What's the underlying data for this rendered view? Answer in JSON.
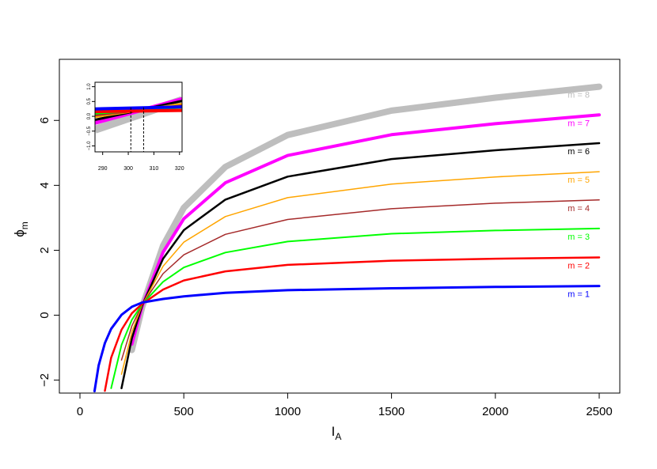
{
  "chart_data": [
    {
      "type": "line",
      "title": "",
      "xlabel": "I",
      "xlabel_sub": "A",
      "ylabel": "ϕ",
      "ylabel_sub": "m",
      "xlim": [
        0,
        2500
      ],
      "ylim": [
        -2.35,
        7.2
      ],
      "xticks": [
        0,
        500,
        1000,
        1500,
        2000,
        2500
      ],
      "yticks": [
        -2,
        0,
        2,
        4,
        6
      ],
      "grid": false,
      "legend": "none (labels at right end of each curve)",
      "x": [
        70,
        90,
        120,
        150,
        200,
        250,
        300,
        400,
        500,
        700,
        1000,
        1500,
        2000,
        2500
      ],
      "series": [
        {
          "name": "m = 1",
          "color": "#0000ff",
          "line_width": 3,
          "values": [
            -2.34,
            -1.55,
            -0.86,
            -0.42,
            0.01,
            0.26,
            0.39,
            0.5,
            0.58,
            0.69,
            0.77,
            0.83,
            0.87,
            0.9
          ]
        },
        {
          "name": "m = 2",
          "color": "#ff0000",
          "line_width": 2.5,
          "values": [
            null,
            null,
            -2.33,
            -1.31,
            -0.45,
            0.06,
            0.35,
            0.79,
            1.07,
            1.35,
            1.55,
            1.68,
            1.74,
            1.78
          ]
        },
        {
          "name": "m = 3",
          "color": "#00ff00",
          "line_width": 2,
          "values": [
            null,
            null,
            null,
            -2.25,
            -0.92,
            -0.14,
            0.34,
            1.03,
            1.47,
            1.93,
            2.27,
            2.51,
            2.61,
            2.67
          ]
        },
        {
          "name": "m = 4",
          "color": "#a52a2a",
          "line_width": 1.5,
          "values": [
            null,
            null,
            null,
            null,
            -1.38,
            -0.33,
            0.33,
            1.28,
            1.86,
            2.49,
            2.95,
            3.28,
            3.45,
            3.55
          ]
        },
        {
          "name": "m = 5",
          "color": "#ffa500",
          "line_width": 1.5,
          "values": [
            null,
            null,
            null,
            null,
            -1.82,
            -0.52,
            0.32,
            1.51,
            2.25,
            3.04,
            3.62,
            4.04,
            4.26,
            4.42
          ]
        },
        {
          "name": "m = 6",
          "color": "#000000",
          "line_width": 2.5,
          "values": [
            null,
            null,
            null,
            null,
            -2.25,
            -0.71,
            0.3,
            1.74,
            2.62,
            3.56,
            4.27,
            4.81,
            5.08,
            5.3
          ]
        },
        {
          "name": "m = 7",
          "color": "#ff00ff",
          "line_width": 4,
          "values": [
            null,
            null,
            null,
            null,
            null,
            -0.89,
            0.28,
            1.94,
            2.97,
            4.08,
            4.92,
            5.56,
            5.9,
            6.17
          ]
        },
        {
          "name": "m = 8",
          "color": "#bebebe",
          "line_width": 8,
          "values": [
            null,
            null,
            null,
            null,
            null,
            -1.07,
            0.26,
            2.14,
            3.31,
            4.57,
            5.55,
            6.3,
            6.7,
            7.04
          ]
        }
      ]
    },
    {
      "type": "line",
      "title": "",
      "xlim": [
        287,
        321
      ],
      "ylim": [
        -1.2,
        1.15
      ],
      "xticks": [
        290,
        300,
        310,
        320
      ],
      "yticks": [
        -1.0,
        -0.5,
        0.0,
        0.5,
        1.0
      ],
      "ytick_labels": [
        "−1.0",
        "−0.5",
        "0.0",
        "0.5",
        "1.0"
      ],
      "vlines": [
        301,
        306
      ],
      "grid": false,
      "inset": true,
      "x": [
        287,
        321
      ],
      "series": [
        {
          "color": "#bebebe",
          "line_width": 10,
          "values": [
            -0.45,
            0.55
          ]
        },
        {
          "color": "#ff00ff",
          "line_width": 5,
          "values": [
            -0.22,
            0.58
          ]
        },
        {
          "color": "#000000",
          "line_width": 3,
          "values": [
            -0.12,
            0.52
          ]
        },
        {
          "color": "#ffa500",
          "line_width": 3,
          "values": [
            -0.02,
            0.42
          ]
        },
        {
          "color": "#a52a2a",
          "line_width": 3,
          "values": [
            0.04,
            0.36
          ]
        },
        {
          "color": "#00ff00",
          "line_width": 3,
          "values": [
            0.1,
            0.3
          ]
        },
        {
          "color": "#ff0000",
          "line_width": 4,
          "values": [
            0.16,
            0.2
          ]
        },
        {
          "color": "#0000ff",
          "line_width": 4,
          "values": [
            0.25,
            0.32
          ]
        }
      ]
    }
  ]
}
